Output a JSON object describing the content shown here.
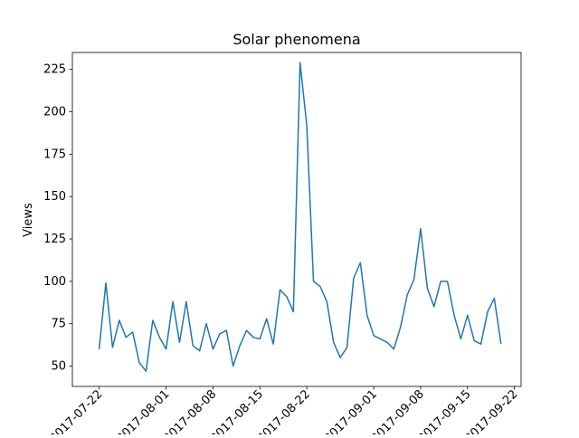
{
  "chart_data": {
    "type": "line",
    "title": "Solar phenomena",
    "xlabel": "",
    "ylabel": "Views",
    "x_tick_labels": [
      "2017-07-22",
      "2017-08-01",
      "2017-08-08",
      "2017-08-15",
      "2017-08-22",
      "2017-09-01",
      "2017-09-08",
      "2017-09-15",
      "2017-09-22"
    ],
    "y_ticks": [
      50,
      75,
      100,
      125,
      150,
      175,
      200,
      225
    ],
    "xlim": [
      "2017-07-18",
      "2017-09-23"
    ],
    "ylim": [
      38,
      235
    ],
    "grid": false,
    "series": [
      {
        "color": "#1f77b4",
        "x": [
          "2017-07-22",
          "2017-07-23",
          "2017-07-24",
          "2017-07-25",
          "2017-07-26",
          "2017-07-27",
          "2017-07-28",
          "2017-07-29",
          "2017-07-30",
          "2017-07-31",
          "2017-08-01",
          "2017-08-02",
          "2017-08-03",
          "2017-08-04",
          "2017-08-05",
          "2017-08-06",
          "2017-08-07",
          "2017-08-08",
          "2017-08-09",
          "2017-08-10",
          "2017-08-11",
          "2017-08-12",
          "2017-08-13",
          "2017-08-14",
          "2017-08-15",
          "2017-08-16",
          "2017-08-17",
          "2017-08-18",
          "2017-08-19",
          "2017-08-20",
          "2017-08-21",
          "2017-08-22",
          "2017-08-23",
          "2017-08-24",
          "2017-08-25",
          "2017-08-26",
          "2017-08-27",
          "2017-08-28",
          "2017-08-29",
          "2017-08-30",
          "2017-08-31",
          "2017-09-01",
          "2017-09-02",
          "2017-09-03",
          "2017-09-04",
          "2017-09-05",
          "2017-09-06",
          "2017-09-07",
          "2017-09-08",
          "2017-09-09",
          "2017-09-10",
          "2017-09-11",
          "2017-09-12",
          "2017-09-13",
          "2017-09-14",
          "2017-09-15",
          "2017-09-16",
          "2017-09-17",
          "2017-09-18",
          "2017-09-19",
          "2017-09-20",
          "2017-09-21"
        ],
        "y": [
          60,
          99,
          61,
          77,
          67,
          70,
          52,
          47,
          77,
          67,
          60,
          88,
          64,
          88,
          62,
          59,
          75,
          60,
          69,
          71,
          50,
          62,
          71,
          67,
          66,
          78,
          63,
          95,
          91,
          82,
          229,
          192,
          100,
          97,
          88,
          64,
          55,
          61,
          102,
          111,
          80,
          68,
          66,
          64,
          60,
          73,
          92,
          101,
          131,
          96,
          85,
          100,
          100,
          80,
          66,
          80,
          65,
          63,
          82,
          90,
          63,
          null
        ]
      }
    ]
  }
}
